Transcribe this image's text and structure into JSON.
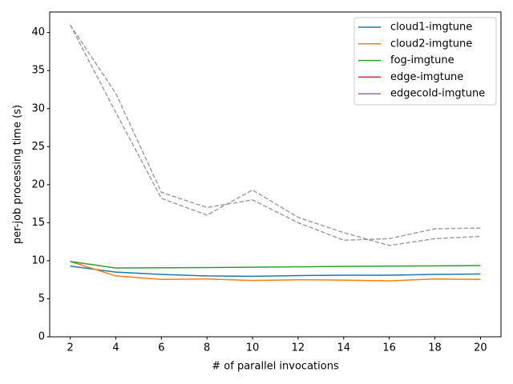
{
  "chart_data": {
    "type": "line",
    "xlabel": "# of parallel invocations",
    "ylabel": "per-job processing time (s)",
    "x": [
      2,
      4,
      6,
      8,
      10,
      12,
      14,
      16,
      18,
      20
    ],
    "xlim": [
      1.1,
      20.9
    ],
    "xticks": [
      2,
      4,
      6,
      8,
      10,
      12,
      14,
      16,
      18,
      20
    ],
    "ylim": [
      0,
      42.7
    ],
    "yticks": [
      0,
      5,
      10,
      15,
      20,
      25,
      30,
      35,
      40
    ],
    "legend": "upper right",
    "series": [
      {
        "name": "cloud1-imgtune",
        "color": "#1f77b4",
        "values": [
          9.3,
          8.5,
          8.2,
          8.0,
          7.95,
          8.05,
          8.1,
          8.1,
          8.2,
          8.25
        ]
      },
      {
        "name": "cloud2-imgtune",
        "color": "#ff7f0e",
        "values": [
          9.9,
          8.0,
          7.55,
          7.6,
          7.4,
          7.5,
          7.45,
          7.35,
          7.6,
          7.55
        ]
      },
      {
        "name": "fog-imgtune",
        "color": "#2ca02c",
        "values": [
          9.9,
          9.05,
          9.07,
          9.1,
          9.15,
          9.2,
          9.25,
          9.3,
          9.32,
          9.38
        ]
      },
      {
        "name": "edge-imgtune",
        "color": "#d62728",
        "values": [
          null,
          null,
          null,
          null,
          null,
          null,
          null,
          null,
          null,
          null
        ]
      },
      {
        "name": "edgecold-imgtune",
        "color": "#9467bd",
        "values": [
          null,
          null,
          null,
          null,
          null,
          null,
          null,
          null,
          null,
          null
        ]
      }
    ],
    "dashed_lines": {
      "color": "#a0a0a0",
      "lines": [
        [
          41,
          32,
          19.0,
          17.0,
          18.0,
          15.0,
          12.7,
          12.9,
          14.2,
          14.3
        ],
        [
          41,
          29.5,
          18.2,
          16.0,
          19.3,
          15.7,
          13.7,
          12.0,
          12.9,
          13.2
        ]
      ]
    }
  }
}
